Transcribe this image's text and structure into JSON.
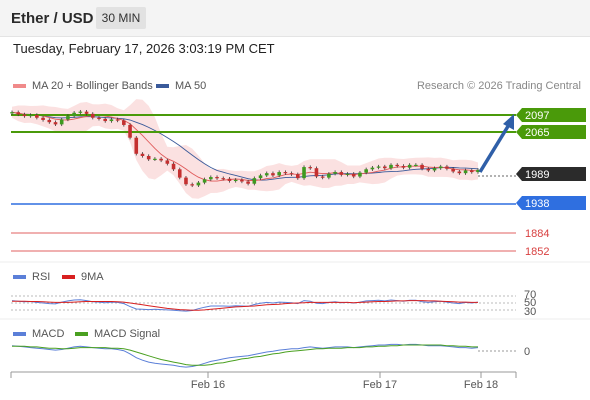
{
  "header": {
    "pair": "Ether / USD",
    "timeframe": "30 MIN"
  },
  "timestamp": "Tuesday, February 17, 2026 3:03:19 PM CET",
  "legend": {
    "ma20": {
      "label": "MA 20 + Bollinger Bands",
      "color": "#f08a8a"
    },
    "ma50": {
      "label": "MA 50",
      "color": "#3a5a9a"
    },
    "rsi": {
      "label": "RSI",
      "color": "#5b7fd8"
    },
    "rsi_ma": {
      "label": "9MA",
      "color": "#d82020"
    },
    "macd": {
      "label": "MACD",
      "color": "#5b7fd8"
    },
    "macd_signal": {
      "label": "MACD Signal",
      "color": "#4aa020"
    }
  },
  "credit": "Research © 2026 Trading Central",
  "colors": {
    "resistance": "#4a9a0a",
    "support": "#2f6fe0",
    "last": "#2b2b2b",
    "arrow": "#2f5fa8",
    "pivot": "#d84040"
  },
  "levels": {
    "resistance_2": "2097",
    "resistance_1": "2065",
    "last": "1989",
    "support_1": "1938",
    "support_2": "1884",
    "support_3": "1852"
  },
  "rsi_levels": [
    "70",
    "50",
    "30"
  ],
  "macd_zero": "0",
  "x_axis": [
    "Feb 16",
    "Feb 17",
    "Feb 18"
  ],
  "chart_data": {
    "type": "candlestick",
    "series": [
      {
        "name": "MA 20 + Bollinger Bands"
      },
      {
        "name": "MA 50"
      }
    ],
    "close": [
      2093,
      2089,
      2086,
      2088,
      2083,
      2079,
      2075,
      2071,
      2080,
      2086,
      2092,
      2094,
      2090,
      2083,
      2081,
      2077,
      2080,
      2078,
      2070,
      2047,
      2018,
      2014,
      2008,
      2009,
      2006,
      2000,
      1990,
      1975,
      1963,
      1961,
      1966,
      1972,
      1976,
      1974,
      1973,
      1969,
      1971,
      1968,
      1964,
      1974,
      1979,
      1983,
      1979,
      1985,
      1983,
      1981,
      1974,
      1994,
      1992,
      1977,
      1975,
      1982,
      1985,
      1980,
      1982,
      1977,
      1984,
      1990,
      1993,
      1995,
      1992,
      1998,
      1996,
      1993,
      1998,
      1998,
      1991,
      1988,
      1992,
      1995,
      1991,
      1986,
      1983,
      1988,
      1985,
      1989
    ],
    "ohlc_note": "candles drawn from close values",
    "rsi": [
      58,
      56,
      54,
      55,
      52,
      50,
      48,
      47,
      53,
      57,
      60,
      61,
      58,
      54,
      53,
      51,
      53,
      52,
      48,
      38,
      30,
      29,
      28,
      29,
      28,
      27,
      26,
      24,
      23,
      25,
      31,
      36,
      40,
      40,
      40,
      39,
      41,
      40,
      39,
      45,
      49,
      52,
      50,
      53,
      52,
      51,
      48,
      58,
      56,
      49,
      48,
      52,
      54,
      51,
      52,
      50,
      53,
      57,
      58,
      59,
      57,
      60,
      58,
      56,
      59,
      59,
      54,
      52,
      54,
      56,
      53,
      50,
      48,
      52,
      50,
      53
    ],
    "rsi_ma": [
      56,
      56,
      56,
      55,
      55,
      54,
      53,
      52,
      52,
      52,
      53,
      54,
      55,
      55,
      55,
      55,
      55,
      54,
      53,
      50,
      47,
      44,
      41,
      38,
      35,
      32,
      30,
      28,
      27,
      26,
      26,
      27,
      29,
      31,
      33,
      35,
      37,
      38,
      39,
      40,
      42,
      44,
      45,
      46,
      48,
      49,
      50,
      51,
      52,
      52,
      52,
      52,
      52,
      52,
      52,
      51,
      52,
      53,
      54,
      55,
      55,
      56,
      57,
      57,
      58,
      58,
      58,
      57,
      57,
      56,
      55,
      54,
      53,
      53,
      52,
      52
    ],
    "rsi_ylim": [
      0,
      100
    ],
    "macd": [
      5,
      4,
      3,
      2,
      1,
      0,
      -1,
      -2,
      -1,
      1,
      3,
      4,
      3,
      2,
      1,
      0,
      0,
      -1,
      -3,
      -8,
      -14,
      -18,
      -21,
      -23,
      -24,
      -25,
      -26,
      -28,
      -29,
      -28,
      -26,
      -23,
      -20,
      -18,
      -16,
      -14,
      -13,
      -12,
      -11,
      -9,
      -7,
      -5,
      -4,
      -2,
      -1,
      0,
      0,
      2,
      3,
      2,
      1,
      2,
      3,
      3,
      3,
      2,
      3,
      4,
      5,
      6,
      6,
      7,
      7,
      6,
      7,
      7,
      6,
      5,
      5,
      5,
      4,
      3,
      2,
      2,
      1,
      2
    ],
    "macd_signal": [
      4,
      4,
      4,
      3,
      3,
      2,
      1,
      1,
      0,
      0,
      1,
      2,
      2,
      2,
      2,
      2,
      1,
      1,
      0,
      -2,
      -5,
      -8,
      -11,
      -14,
      -17,
      -19,
      -21,
      -23,
      -25,
      -26,
      -26,
      -26,
      -25,
      -23,
      -22,
      -20,
      -18,
      -16,
      -15,
      -13,
      -12,
      -10,
      -8,
      -7,
      -5,
      -4,
      -3,
      -2,
      -1,
      0,
      0,
      1,
      1,
      1,
      2,
      2,
      2,
      3,
      3,
      4,
      4,
      5,
      5,
      6,
      6,
      6,
      6,
      6,
      6,
      6,
      5,
      5,
      4,
      4,
      3,
      3
    ],
    "price_ylim": [
      1830,
      2115
    ],
    "macd_ylim": [
      -32,
      14
    ]
  }
}
